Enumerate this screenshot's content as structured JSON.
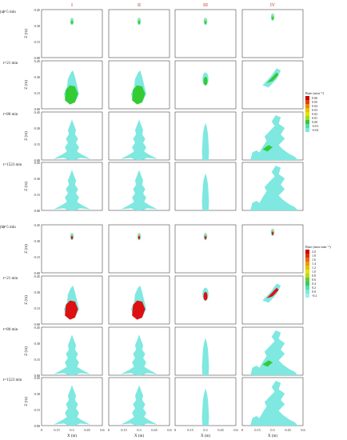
{
  "columns": [
    "I",
    "II",
    "III",
    "IV"
  ],
  "panel_a": {
    "label": "(a)",
    "rows": [
      "t=5 min",
      "t=21 min",
      "t=80 min",
      "t=1523 min"
    ],
    "legend": {
      "title": "Rate (min⁻¹)",
      "ticks": [
        "0.06",
        "0.05",
        "0.04",
        "0.03",
        "0.02",
        "0.01",
        "0.00",
        "-0.01",
        "-0.02"
      ]
    }
  },
  "panel_b": {
    "label": "(b)",
    "rows": [
      "t=5 min",
      "t=21 min",
      "t=80 min",
      "t=1523 min"
    ],
    "legend": {
      "title": "Rate (mm·min⁻¹)",
      "ticks": [
        "2.0",
        "1.8",
        "1.6",
        "1.4",
        "1.2",
        "1.0",
        "0.8",
        "0.6",
        "0.4",
        "0.2",
        "0.0",
        "-0.2"
      ]
    }
  },
  "axes": {
    "ylabel": "Z (m)",
    "xlabel": "X (m)",
    "yticks": [
      "0.00",
      "0.15",
      "0.30",
      "0.45"
    ],
    "xticks": [
      "0",
      "0.15",
      "0.3",
      "0.45",
      "0.6"
    ]
  },
  "colors": {
    "cyan": "#7fe8e0",
    "green": "#33cc33",
    "yellow": "#e8e000",
    "red": "#dd1111",
    "dark": "#222222"
  }
}
